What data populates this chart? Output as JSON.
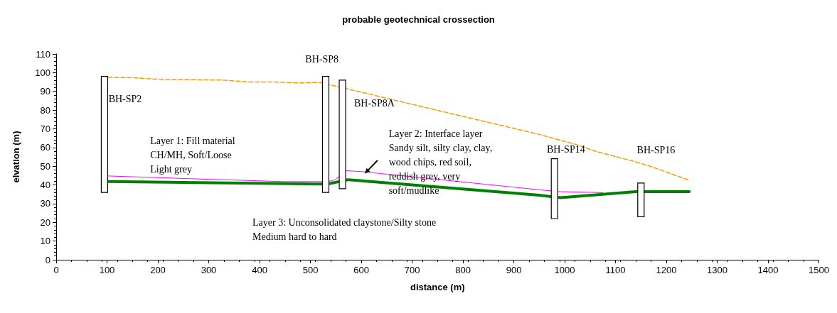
{
  "chart_data": {
    "type": "line",
    "title": "probable geotechnical crossection",
    "xlabel": "distance (m)",
    "ylabel": "elvation (m)",
    "xlim": [
      0,
      1500
    ],
    "xticks": [
      0,
      100,
      200,
      300,
      400,
      500,
      600,
      700,
      800,
      900,
      1000,
      1100,
      1200,
      1300,
      1400,
      1500
    ],
    "ylim": [
      0,
      110
    ],
    "yticks": [
      0,
      10,
      20,
      30,
      40,
      50,
      60,
      70,
      80,
      90,
      100,
      110
    ],
    "grid": false,
    "marker": "none",
    "series": [
      {
        "color": "#ff9900",
        "line_style": "dashed",
        "x": [
          102,
          150,
          200,
          330,
          380,
          430,
          480,
          518,
          536,
          681,
          950,
          1024,
          1064,
          1135,
          1168,
          1245
        ],
        "values": [
          97.5,
          97.3,
          96.5,
          96,
          95,
          95,
          94.5,
          94.8,
          93.7,
          84.3,
          67,
          61.5,
          57.7,
          52.7,
          50,
          42.5
        ]
      },
      {
        "color": "#ff00ff",
        "line_style": "solid",
        "x": [
          102,
          300,
          448,
          534,
          548,
          570,
          602,
          950,
          992,
          1075
        ],
        "values": [
          44.8,
          43,
          41.8,
          41.8,
          42.7,
          47.6,
          47.1,
          37.4,
          36.4,
          35.9
        ]
      },
      {
        "color": "#008000",
        "line_style": "solid",
        "x": [
          102,
          518,
          534,
          574,
          950,
          992,
          1140,
          1245
        ],
        "values": [
          41.8,
          40.5,
          40.5,
          42.8,
          34.5,
          33.2,
          36.4,
          36.4
        ]
      },
      {
        "type": "bar",
        "color": "#ffffff",
        "x": [
          95,
          530,
          563,
          980,
          1150
        ],
        "base": [
          36,
          36,
          38,
          22,
          23
        ],
        "values": [
          62,
          62,
          58,
          32,
          18
        ]
      }
    ],
    "annotations": [
      "BH-SP2",
      "BH-SP8",
      "BH-SP8A",
      "BH-SP14",
      "BH-SP16",
      "Layer 1: Fill material\nCH/MH, Soft/Loose\nLight grey",
      "Layer 2: Interface layer\nSandy silt, silty clay, clay,\nwood chips, red soil,\nreddish grey, very\nsoft/mudlike",
      "Layer 3: Unconsolidated claystone/Silty stone\nMedium hard to hard"
    ]
  }
}
